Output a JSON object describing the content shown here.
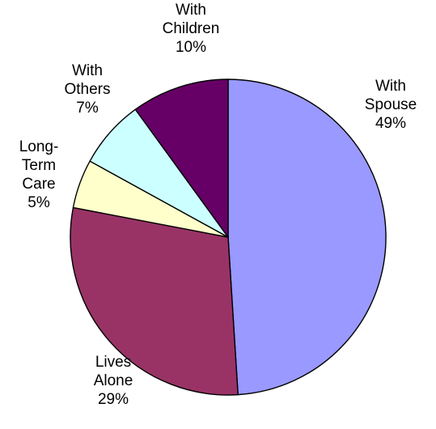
{
  "chart_data": {
    "type": "pie",
    "title": "",
    "slices": [
      {
        "label_lines": [
          "With",
          "Spouse"
        ],
        "percent_label": "49%",
        "value": 49,
        "color": "#9999FF"
      },
      {
        "label_lines": [
          "Lives",
          "Alone"
        ],
        "percent_label": "29%",
        "value": 29,
        "color": "#993366"
      },
      {
        "label_lines": [
          "Long-",
          "Term",
          "Care"
        ],
        "percent_label": "5%",
        "value": 5,
        "color": "#FFFFCC"
      },
      {
        "label_lines": [
          "With",
          "Others"
        ],
        "percent_label": "7%",
        "value": 7,
        "color": "#CCFFFF"
      },
      {
        "label_lines": [
          "With",
          "Children"
        ],
        "percent_label": "10%",
        "value": 10,
        "color": "#660066"
      }
    ],
    "start_angle": "12 o'clock",
    "direction": "clockwise",
    "legend": "none (labels beside slices)"
  }
}
